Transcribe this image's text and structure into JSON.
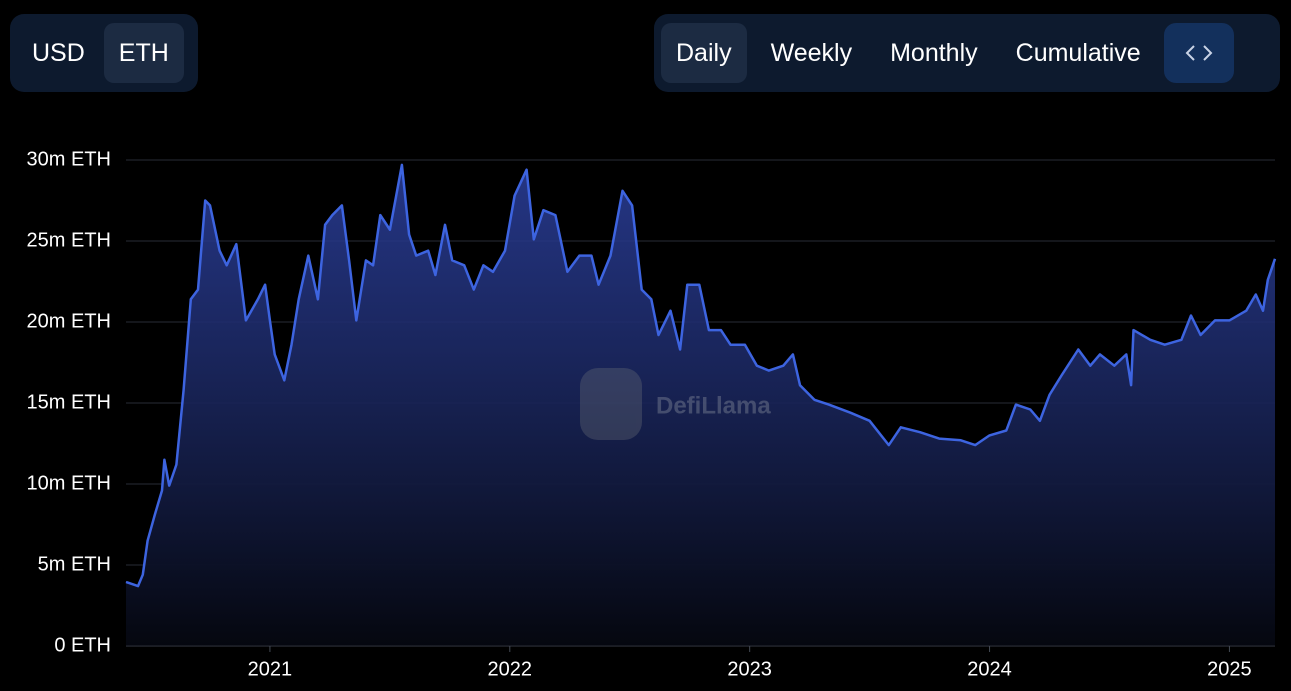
{
  "controls": {
    "currency": [
      "USD",
      "ETH"
    ],
    "period": [
      "Daily",
      "Weekly",
      "Monthly",
      "Cumulative"
    ]
  },
  "chart_data": {
    "type": "area",
    "watermark": "DefiLlama",
    "color": "#3d64e0",
    "x": [
      2020.4,
      2020.45,
      2020.47,
      2020.49,
      2020.52,
      2020.55,
      2020.56,
      2020.58,
      2020.61,
      2020.64,
      2020.67,
      2020.7,
      2020.73,
      2020.75,
      2020.79,
      2020.82,
      2020.86,
      2020.9,
      2020.95,
      2020.98,
      2021.0,
      2021.02,
      2021.06,
      2021.09,
      2021.12,
      2021.16,
      2021.2,
      2021.23,
      2021.26,
      2021.3,
      2021.33,
      2021.36,
      2021.4,
      2021.43,
      2021.46,
      2021.5,
      2021.53,
      2021.55,
      2021.58,
      2021.61,
      2021.66,
      2021.69,
      2021.73,
      2021.76,
      2021.81,
      2021.85,
      2021.89,
      2021.93,
      2021.98,
      2022.02,
      2022.07,
      2022.1,
      2022.14,
      2022.19,
      2022.24,
      2022.29,
      2022.34,
      2022.37,
      2022.42,
      2022.47,
      2022.51,
      2022.55,
      2022.59,
      2022.62,
      2022.67,
      2022.71,
      2022.74,
      2022.79,
      2022.83,
      2022.88,
      2022.92,
      2022.98,
      2023.03,
      2023.08,
      2023.14,
      2023.18,
      2023.21,
      2023.27,
      2023.33,
      2023.42,
      2023.5,
      2023.58,
      2023.63,
      2023.71,
      2023.79,
      2023.88,
      2023.94,
      2024.0,
      2024.07,
      2024.11,
      2024.17,
      2024.21,
      2024.25,
      2024.3,
      2024.37,
      2024.42,
      2024.46,
      2024.52,
      2024.57,
      2024.59,
      2024.6,
      2024.67,
      2024.73,
      2024.8,
      2024.84,
      2024.88,
      2024.94,
      2025.0,
      2025.07,
      2025.11,
      2025.14,
      2025.16,
      2025.19
    ],
    "values": [
      3.95,
      3.7,
      4.4,
      6.5,
      8.1,
      9.6,
      11.5,
      9.9,
      11.2,
      15.8,
      21.4,
      22,
      27.5,
      27.2,
      24.4,
      23.5,
      24.8,
      20.1,
      21.4,
      22.3,
      20.1,
      18,
      16.4,
      18.6,
      21.4,
      24.1,
      21.4,
      26,
      26.6,
      27.2,
      23.8,
      20.1,
      23.8,
      23.5,
      26.6,
      25.7,
      28.1,
      29.7,
      25.4,
      24.1,
      24.4,
      22.9,
      26,
      23.8,
      23.5,
      22,
      23.5,
      23.1,
      24.4,
      27.8,
      29.4,
      25.1,
      26.9,
      26.6,
      23.1,
      24.1,
      24.1,
      22.3,
      24.1,
      28.1,
      27.2,
      22,
      21.4,
      19.2,
      20.7,
      18.3,
      22.3,
      22.3,
      19.5,
      19.5,
      18.6,
      18.6,
      17.3,
      17,
      17.3,
      18,
      16.1,
      15.2,
      14.9,
      14.4,
      13.9,
      12.4,
      13.5,
      13.2,
      12.8,
      12.7,
      12.4,
      13,
      13.3,
      14.9,
      14.6,
      13.9,
      15.5,
      16.7,
      18.3,
      17.3,
      18,
      17.3,
      18,
      16.1,
      19.5,
      18.9,
      18.6,
      18.9,
      20.4,
      19.2,
      20.1,
      20.1,
      20.7,
      21.7,
      20.7,
      22.6,
      23.9
    ],
    "xlim": [
      2020.4,
      2025.19
    ],
    "xticks": [
      2021,
      2022,
      2023,
      2024,
      2025
    ],
    "ylim": [
      0,
      30
    ],
    "yticks": [
      {
        "value": 0,
        "label": "0 ETH"
      },
      {
        "value": 5,
        "label": "5m ETH"
      },
      {
        "value": 10,
        "label": "10m ETH"
      },
      {
        "value": 15,
        "label": "15m ETH"
      },
      {
        "value": 20,
        "label": "20m ETH"
      },
      {
        "value": 25,
        "label": "25m ETH"
      },
      {
        "value": 30,
        "label": "30m ETH"
      }
    ],
    "grid": true
  }
}
